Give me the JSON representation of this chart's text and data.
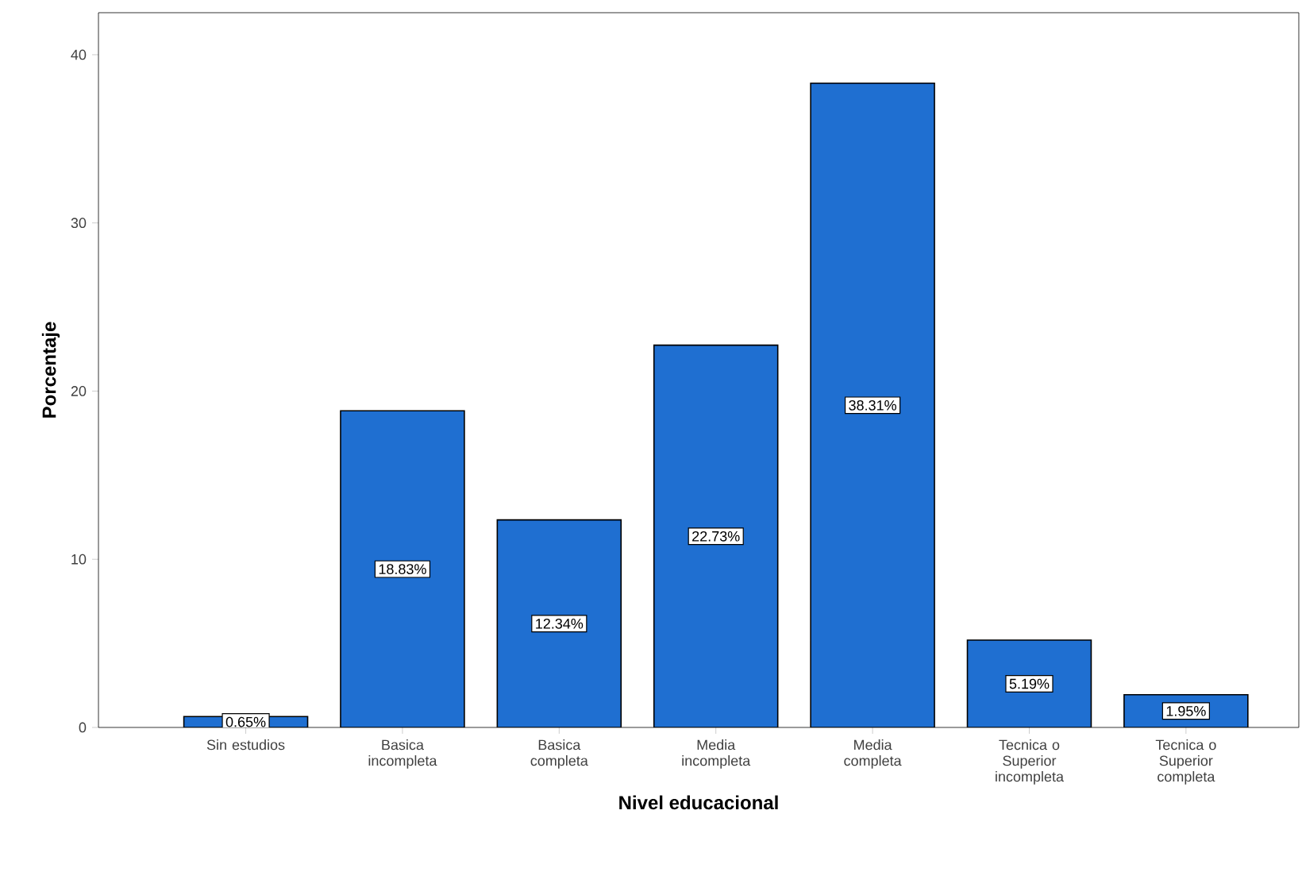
{
  "chart_data": {
    "type": "bar",
    "xlabel": "Nivel educacional",
    "ylabel": "Porcentaje",
    "categories": [
      "Sin estudios",
      "Basica incompleta",
      "Basica completa",
      "Media incompleta",
      "Media completa",
      "Tecnica o Superior incompleta",
      "Tecnica o Superior completa"
    ],
    "values": [
      0.65,
      18.83,
      12.34,
      22.73,
      38.31,
      5.19,
      1.95
    ],
    "value_labels": [
      "0.65%",
      "18.83%",
      "12.34%",
      "22.73%",
      "38.31%",
      "5.19%",
      "1.95%"
    ],
    "color": "#1f6fd1",
    "ylim": [
      0,
      42.5
    ],
    "yticks": [
      0,
      10,
      20,
      30,
      40
    ],
    "grid": false
  }
}
